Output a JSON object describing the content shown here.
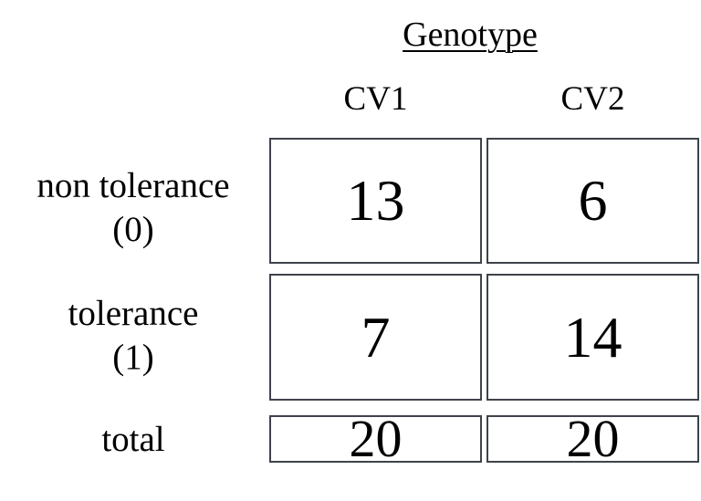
{
  "title": "Genotype",
  "columns": [
    {
      "label": "CV1"
    },
    {
      "label": "CV2"
    }
  ],
  "rows": [
    {
      "label_line1": "non tolerance",
      "label_line2": "(0)",
      "values": [
        "13",
        "6"
      ]
    },
    {
      "label_line1": "tolerance",
      "label_line2": "(1)",
      "values": [
        "7",
        "14"
      ]
    }
  ],
  "total_row": {
    "label": "total",
    "values": [
      "20",
      "20"
    ]
  },
  "colors": {
    "background": "#ffffff",
    "text": "#000000",
    "box_border": "#3f434b"
  },
  "chart_data": {
    "type": "table",
    "title": "Genotype",
    "categories": [
      "CV1",
      "CV2"
    ],
    "row_labels": [
      "non tolerance (0)",
      "tolerance (1)",
      "total"
    ],
    "series": [
      {
        "name": "non tolerance (0)",
        "values": [
          13,
          6
        ]
      },
      {
        "name": "tolerance (1)",
        "values": [
          7,
          14
        ]
      },
      {
        "name": "total",
        "values": [
          20,
          20
        ]
      }
    ]
  }
}
